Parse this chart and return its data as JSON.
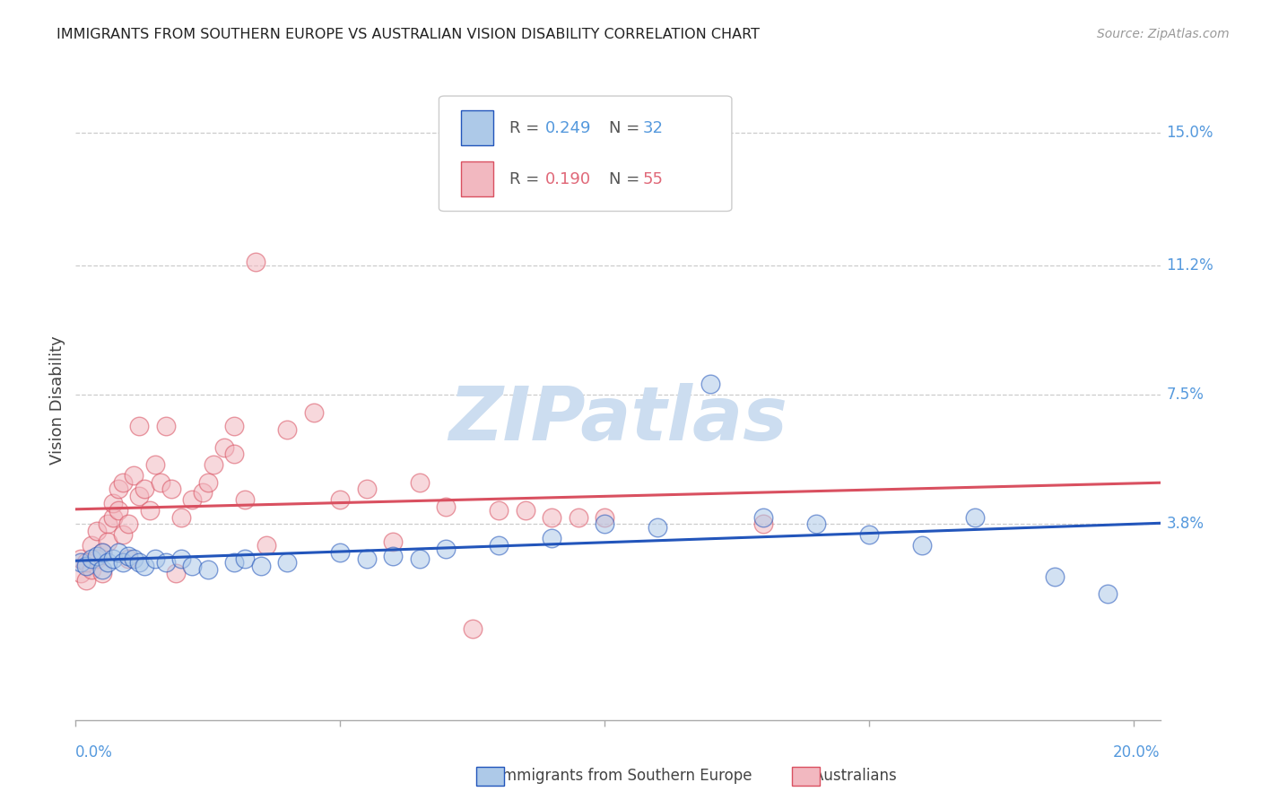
{
  "title": "IMMIGRANTS FROM SOUTHERN EUROPE VS AUSTRALIAN VISION DISABILITY CORRELATION CHART",
  "source": "Source: ZipAtlas.com",
  "ylabel": "Vision Disability",
  "ytick_labels": [
    "15.0%",
    "11.2%",
    "7.5%",
    "3.8%"
  ],
  "ytick_values": [
    0.15,
    0.112,
    0.075,
    0.038
  ],
  "xlim": [
    0.0,
    0.205
  ],
  "ylim": [
    -0.018,
    0.165
  ],
  "color_blue": "#adc9e8",
  "color_pink": "#f2b8c0",
  "color_blue_line": "#2255bb",
  "color_pink_line": "#d95060",
  "color_blue_text": "#5599dd",
  "color_pink_text": "#e06878",
  "color_axis_text": "#5599dd",
  "blue_x": [
    0.001,
    0.002,
    0.003,
    0.004,
    0.005,
    0.005,
    0.006,
    0.007,
    0.008,
    0.009,
    0.01,
    0.011,
    0.012,
    0.013,
    0.015,
    0.017,
    0.02,
    0.022,
    0.025,
    0.03,
    0.032,
    0.035,
    0.04,
    0.05,
    0.055,
    0.06,
    0.065,
    0.07,
    0.08,
    0.09,
    0.1,
    0.11,
    0.12,
    0.13,
    0.14,
    0.15,
    0.16,
    0.17,
    0.185,
    0.195
  ],
  "blue_y": [
    0.027,
    0.026,
    0.028,
    0.029,
    0.025,
    0.03,
    0.027,
    0.028,
    0.03,
    0.027,
    0.029,
    0.028,
    0.027,
    0.026,
    0.028,
    0.027,
    0.028,
    0.026,
    0.025,
    0.027,
    0.028,
    0.026,
    0.027,
    0.03,
    0.028,
    0.029,
    0.028,
    0.031,
    0.032,
    0.034,
    0.038,
    0.037,
    0.078,
    0.04,
    0.038,
    0.035,
    0.032,
    0.04,
    0.023,
    0.018
  ],
  "pink_x": [
    0.001,
    0.001,
    0.002,
    0.002,
    0.003,
    0.003,
    0.004,
    0.004,
    0.005,
    0.005,
    0.006,
    0.006,
    0.007,
    0.007,
    0.008,
    0.008,
    0.009,
    0.009,
    0.01,
    0.01,
    0.011,
    0.012,
    0.012,
    0.013,
    0.014,
    0.015,
    0.016,
    0.017,
    0.018,
    0.019,
    0.02,
    0.022,
    0.024,
    0.025,
    0.026,
    0.028,
    0.03,
    0.03,
    0.032,
    0.034,
    0.036,
    0.04,
    0.045,
    0.05,
    0.055,
    0.06,
    0.065,
    0.07,
    0.075,
    0.08,
    0.085,
    0.09,
    0.095,
    0.1,
    0.13
  ],
  "pink_y": [
    0.024,
    0.028,
    0.022,
    0.027,
    0.025,
    0.032,
    0.028,
    0.036,
    0.024,
    0.03,
    0.038,
    0.033,
    0.04,
    0.044,
    0.042,
    0.048,
    0.035,
    0.05,
    0.028,
    0.038,
    0.052,
    0.046,
    0.066,
    0.048,
    0.042,
    0.055,
    0.05,
    0.066,
    0.048,
    0.024,
    0.04,
    0.045,
    0.047,
    0.05,
    0.055,
    0.06,
    0.058,
    0.066,
    0.045,
    0.113,
    0.032,
    0.065,
    0.07,
    0.045,
    0.048,
    0.033,
    0.05,
    0.043,
    0.008,
    0.042,
    0.042,
    0.04,
    0.04,
    0.04,
    0.038
  ]
}
